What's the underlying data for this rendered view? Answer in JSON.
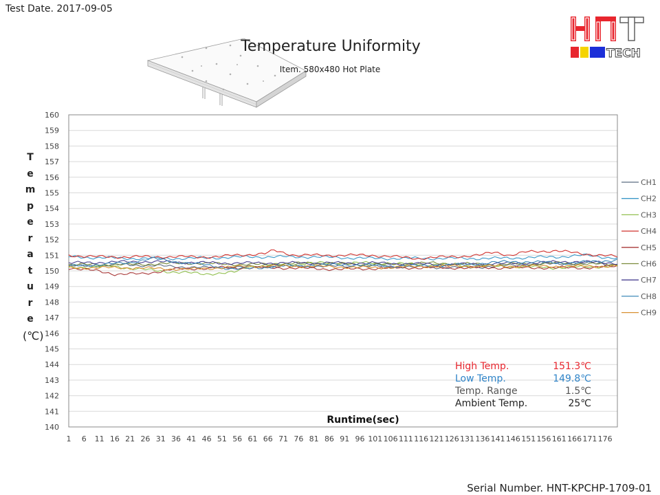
{
  "header": {
    "test_date": "Test Date. 2017-09-05",
    "serial": "Serial Number. HNT-KPCHP-1709-01"
  },
  "logo": {
    "name": "hnt-tech-logo",
    "letters": "HNT",
    "sub": "TECH",
    "colors": {
      "red": "#e8262e",
      "yellow": "#f5d400",
      "blue": "#1c2fd8",
      "dark": "#333333"
    }
  },
  "chart_data": {
    "type": "line",
    "title": "Temperature Uniformity",
    "subtitle": "Item. 580x480 Hot Plate",
    "xlabel": "Runtime(sec)",
    "ylabel": "Temperature",
    "ylabel_unit": "(℃)",
    "ylim": [
      140,
      160
    ],
    "xlim": [
      1,
      180
    ],
    "grid": true,
    "legend_position": "right",
    "x_ticks": [
      1,
      6,
      11,
      16,
      21,
      26,
      31,
      36,
      41,
      46,
      51,
      56,
      61,
      66,
      71,
      76,
      81,
      86,
      91,
      96,
      101,
      106,
      111,
      116,
      121,
      126,
      131,
      136,
      141,
      146,
      151,
      156,
      161,
      166,
      171,
      176
    ],
    "y_ticks": [
      140,
      141,
      142,
      143,
      144,
      145,
      146,
      147,
      148,
      149,
      150,
      151,
      152,
      153,
      154,
      155,
      156,
      157,
      158,
      159,
      160
    ],
    "series": [
      {
        "name": "CH1",
        "color": "#5a6a80",
        "points": [
          [
            1,
            150.3
          ],
          [
            20,
            150.4
          ],
          [
            45,
            150.2
          ],
          [
            70,
            150.3
          ],
          [
            100,
            150.3
          ],
          [
            130,
            150.2
          ],
          [
            150,
            150.4
          ],
          [
            170,
            150.5
          ],
          [
            180,
            150.4
          ]
        ]
      },
      {
        "name": "CH2",
        "color": "#3a98c8",
        "points": [
          [
            1,
            150.9
          ],
          [
            20,
            150.8
          ],
          [
            40,
            150.8
          ],
          [
            60,
            150.9
          ],
          [
            80,
            150.9
          ],
          [
            100,
            150.8
          ],
          [
            120,
            150.8
          ],
          [
            140,
            150.8
          ],
          [
            160,
            150.9
          ],
          [
            170,
            151.0
          ],
          [
            180,
            150.8
          ]
        ]
      },
      {
        "name": "CH3",
        "color": "#92c050",
        "points": [
          [
            1,
            150.2
          ],
          [
            15,
            150.3
          ],
          [
            30,
            150.0
          ],
          [
            38,
            149.9
          ],
          [
            45,
            149.8
          ],
          [
            55,
            149.9
          ],
          [
            60,
            150.3
          ],
          [
            80,
            150.5
          ],
          [
            100,
            150.5
          ],
          [
            120,
            150.4
          ],
          [
            140,
            150.3
          ],
          [
            160,
            150.2
          ],
          [
            180,
            150.3
          ]
        ]
      },
      {
        "name": "CH4",
        "color": "#d0302c",
        "points": [
          [
            1,
            151.0
          ],
          [
            10,
            150.9
          ],
          [
            30,
            150.9
          ],
          [
            50,
            150.9
          ],
          [
            55,
            151.0
          ],
          [
            65,
            151.1
          ],
          [
            68,
            151.3
          ],
          [
            75,
            151.0
          ],
          [
            100,
            151.0
          ],
          [
            115,
            150.8
          ],
          [
            125,
            150.9
          ],
          [
            135,
            151.0
          ],
          [
            140,
            151.2
          ],
          [
            145,
            151.0
          ],
          [
            150,
            151.2
          ],
          [
            160,
            151.3
          ],
          [
            168,
            151.1
          ],
          [
            175,
            151.0
          ],
          [
            180,
            150.9
          ]
        ]
      },
      {
        "name": "CH5",
        "color": "#a83838",
        "points": [
          [
            1,
            150.2
          ],
          [
            10,
            150.0
          ],
          [
            16,
            149.8
          ],
          [
            25,
            149.8
          ],
          [
            35,
            150.1
          ],
          [
            50,
            150.2
          ],
          [
            70,
            150.2
          ],
          [
            90,
            150.1
          ],
          [
            110,
            150.2
          ],
          [
            130,
            150.2
          ],
          [
            150,
            150.2
          ],
          [
            170,
            150.2
          ],
          [
            180,
            150.3
          ]
        ]
      },
      {
        "name": "CH6",
        "color": "#7a8a3a",
        "points": [
          [
            1,
            150.4
          ],
          [
            20,
            150.4
          ],
          [
            40,
            150.5
          ],
          [
            60,
            150.4
          ],
          [
            80,
            150.5
          ],
          [
            100,
            150.4
          ],
          [
            120,
            150.5
          ],
          [
            140,
            150.4
          ],
          [
            160,
            150.5
          ],
          [
            180,
            150.4
          ]
        ]
      },
      {
        "name": "CH7",
        "color": "#4a4090",
        "points": [
          [
            1,
            150.5
          ],
          [
            25,
            150.6
          ],
          [
            50,
            150.5
          ],
          [
            75,
            150.5
          ],
          [
            100,
            150.5
          ],
          [
            125,
            150.4
          ],
          [
            150,
            150.5
          ],
          [
            165,
            150.6
          ],
          [
            180,
            150.5
          ]
        ]
      },
      {
        "name": "CH8",
        "color": "#3c88b8",
        "points": [
          [
            1,
            150.3
          ],
          [
            20,
            150.5
          ],
          [
            28,
            150.8
          ],
          [
            35,
            150.6
          ],
          [
            45,
            150.4
          ],
          [
            55,
            150.1
          ],
          [
            70,
            150.3
          ],
          [
            90,
            150.4
          ],
          [
            110,
            150.3
          ],
          [
            130,
            150.4
          ],
          [
            145,
            150.6
          ],
          [
            165,
            150.5
          ],
          [
            180,
            150.7
          ]
        ]
      },
      {
        "name": "CH9",
        "color": "#d89030",
        "points": [
          [
            1,
            150.2
          ],
          [
            20,
            150.2
          ],
          [
            40,
            150.1
          ],
          [
            60,
            150.3
          ],
          [
            80,
            150.3
          ],
          [
            100,
            150.2
          ],
          [
            120,
            150.3
          ],
          [
            140,
            150.3
          ],
          [
            160,
            150.3
          ],
          [
            180,
            150.3
          ]
        ]
      }
    ],
    "stats": [
      {
        "label": "High Temp.",
        "value": "151.3℃",
        "color": "#e8262e"
      },
      {
        "label": "Low Temp.",
        "value": "149.8℃",
        "color": "#2f84c8"
      },
      {
        "label": "Temp. Range",
        "value": "1.5℃",
        "color": "#555555"
      },
      {
        "label": "Ambient Temp.",
        "value": "25℃",
        "color": "#222222"
      }
    ]
  }
}
